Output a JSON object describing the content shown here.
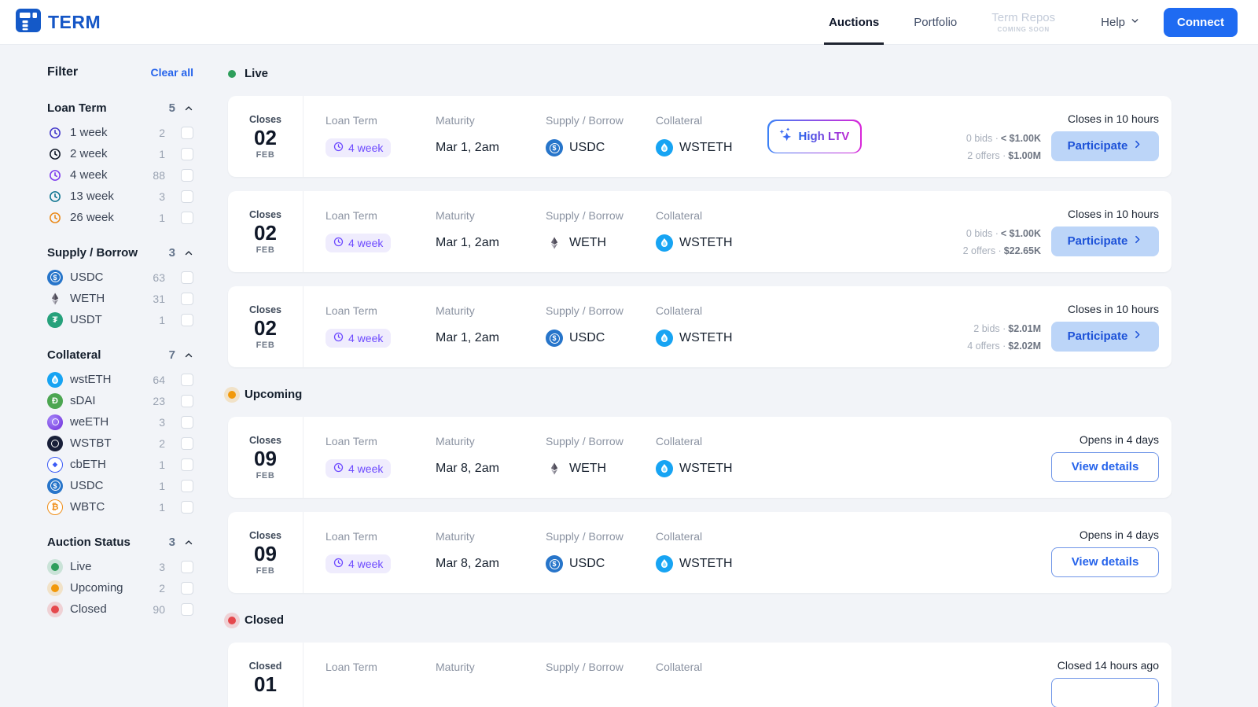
{
  "header": {
    "brand": "TERM",
    "nav": [
      {
        "label": "Auctions",
        "active": true
      },
      {
        "label": "Portfolio",
        "active": false
      },
      {
        "label": "Term Repos",
        "active": false,
        "disabled": true,
        "badge": "COMING SOON"
      }
    ],
    "help": {
      "label": "Help"
    },
    "connect_label": "Connect"
  },
  "sidebar": {
    "title": "Filter",
    "clear_all_label": "Clear all",
    "groups": [
      {
        "name": "Loan Term",
        "count": "5",
        "items": [
          {
            "icon": "clock",
            "color": "#4338ca",
            "label": "1 week",
            "count": "2"
          },
          {
            "icon": "clock",
            "color": "#111827",
            "label": "2 week",
            "count": "1"
          },
          {
            "icon": "clock",
            "color": "#7c3aed",
            "label": "4 week",
            "count": "88"
          },
          {
            "icon": "clock",
            "color": "#0e7490",
            "label": "13 week",
            "count": "3"
          },
          {
            "icon": "clock",
            "color": "#ea8a1a",
            "label": "26 week",
            "count": "1"
          }
        ]
      },
      {
        "name": "Supply / Borrow",
        "count": "3",
        "items": [
          {
            "icon": "usdc",
            "label": "USDC",
            "count": "63"
          },
          {
            "icon": "weth",
            "label": "WETH",
            "count": "31"
          },
          {
            "icon": "usdt",
            "label": "USDT",
            "count": "1"
          }
        ]
      },
      {
        "name": "Collateral",
        "count": "7",
        "items": [
          {
            "icon": "wsteth",
            "label": "wstETH",
            "count": "64"
          },
          {
            "icon": "sdai",
            "label": "sDAI",
            "count": "23"
          },
          {
            "icon": "weeth",
            "label": "weETH",
            "count": "3"
          },
          {
            "icon": "wstbt",
            "label": "WSTBT",
            "count": "2"
          },
          {
            "icon": "cbeth",
            "label": "cbETH",
            "count": "1"
          },
          {
            "icon": "usdc",
            "label": "USDC",
            "count": "1"
          },
          {
            "icon": "wbtc",
            "label": "WBTC",
            "count": "1"
          }
        ]
      },
      {
        "name": "Auction Status",
        "count": "3",
        "items": [
          {
            "icon": "dot",
            "color": "#2e9e5b",
            "label": "Live",
            "count": "3"
          },
          {
            "icon": "dot",
            "color": "#f2990a",
            "label": "Upcoming",
            "count": "2"
          },
          {
            "icon": "dot",
            "color": "#e5484d",
            "label": "Closed",
            "count": "90"
          }
        ]
      }
    ]
  },
  "card_labels": {
    "loan_term": "Loan Term",
    "maturity": "Maturity",
    "supply": "Supply / Borrow",
    "collateral": "Collateral"
  },
  "sections": [
    {
      "label": "Live",
      "dot_color": "#2e9e5b",
      "halo": false,
      "cards": [
        {
          "date_label": "Closes",
          "day": "02",
          "month": "FEB",
          "loan_term": "4 week",
          "maturity": "Mar 1, 2am",
          "supply": {
            "icon": "usdc",
            "token": "USDC"
          },
          "collateral": {
            "icon": "wsteth",
            "token": "WSTETH"
          },
          "badge": "High LTV",
          "stats": [
            {
              "label": "0 bids ·",
              "value": "< $1.00K"
            },
            {
              "label": "2 offers ·",
              "value": "$1.00M"
            }
          ],
          "timing": "Closes in 10 hours",
          "action": {
            "label": "Participate",
            "style": "primary"
          }
        },
        {
          "date_label": "Closes",
          "day": "02",
          "month": "FEB",
          "loan_term": "4 week",
          "maturity": "Mar 1, 2am",
          "supply": {
            "icon": "weth",
            "token": "WETH"
          },
          "collateral": {
            "icon": "wsteth",
            "token": "WSTETH"
          },
          "stats": [
            {
              "label": "0 bids ·",
              "value": "< $1.00K"
            },
            {
              "label": "2 offers ·",
              "value": "$22.65K"
            }
          ],
          "timing": "Closes in 10 hours",
          "action": {
            "label": "Participate",
            "style": "primary"
          }
        },
        {
          "date_label": "Closes",
          "day": "02",
          "month": "FEB",
          "loan_term": "4 week",
          "maturity": "Mar 1, 2am",
          "supply": {
            "icon": "usdc",
            "token": "USDC"
          },
          "collateral": {
            "icon": "wsteth",
            "token": "WSTETH"
          },
          "stats": [
            {
              "label": "2 bids ·",
              "value": "$2.01M"
            },
            {
              "label": "4 offers ·",
              "value": "$2.02M"
            }
          ],
          "timing": "Closes in 10 hours",
          "action": {
            "label": "Participate",
            "style": "primary"
          }
        }
      ]
    },
    {
      "label": "Upcoming",
      "dot_color": "#f2990a",
      "halo": true,
      "cards": [
        {
          "date_label": "Closes",
          "day": "09",
          "month": "FEB",
          "loan_term": "4 week",
          "maturity": "Mar 8, 2am",
          "supply": {
            "icon": "weth",
            "token": "WETH"
          },
          "collateral": {
            "icon": "wsteth",
            "token": "WSTETH"
          },
          "timing": "Opens in 4 days",
          "action": {
            "label": "View details",
            "style": "outline"
          }
        },
        {
          "date_label": "Closes",
          "day": "09",
          "month": "FEB",
          "loan_term": "4 week",
          "maturity": "Mar 8, 2am",
          "supply": {
            "icon": "usdc",
            "token": "USDC"
          },
          "collateral": {
            "icon": "wsteth",
            "token": "WSTETH"
          },
          "timing": "Opens in 4 days",
          "action": {
            "label": "View details",
            "style": "outline"
          }
        }
      ]
    },
    {
      "label": "Closed",
      "dot_color": "#e5484d",
      "halo": true,
      "cards": [
        {
          "date_label": "Closed",
          "day": "01",
          "month": "",
          "timing": "Closed 14 hours ago",
          "action": {
            "label": "",
            "style": "outline"
          }
        }
      ]
    }
  ]
}
